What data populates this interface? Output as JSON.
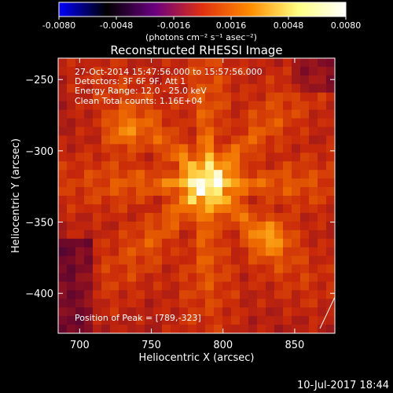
{
  "chart_data": {
    "type": "heatmap",
    "title": "Reconstructed RHESSI Image",
    "xlabel": "Heliocentric X (arcsec)",
    "ylabel": "Heliocentric Y (arcsec)",
    "xlim": [
      685,
      878
    ],
    "ylim": [
      -428,
      -235
    ],
    "x_ticks": [
      700,
      750,
      800,
      850
    ],
    "y_ticks": [
      -250,
      -300,
      -350,
      -400
    ],
    "annotations": [
      "27-Oct-2014 15:47:56.000 to 15:57:56.000",
      "Detectors: 3F 6F 9F, Att 1",
      "Energy Range: 12.0 - 25.0 keV",
      "Clean     Total counts: 1.16E+04"
    ],
    "peak_label": "Position of Peak = [789,-323]",
    "peak": [
      789,
      -323
    ],
    "secondary_sources": [
      [
        730,
        -287
      ],
      [
        833,
        -360
      ]
    ],
    "colorbar": {
      "min": -0.008,
      "max": 0.008,
      "ticks": [
        "-0.0080",
        "-0.0048",
        "-0.0016",
        "0.0016",
        "0.0048",
        "0.0080"
      ],
      "unit_label": "(photons cm⁻² s⁻¹ asec⁻²)",
      "colors": [
        "#0000ff",
        "#000000",
        "#6a0080",
        "#e03010",
        "#ff8c00",
        "#ffff80",
        "#ffffff"
      ]
    }
  },
  "footer": {
    "timestamp": "10-Jul-2017 18:44"
  }
}
